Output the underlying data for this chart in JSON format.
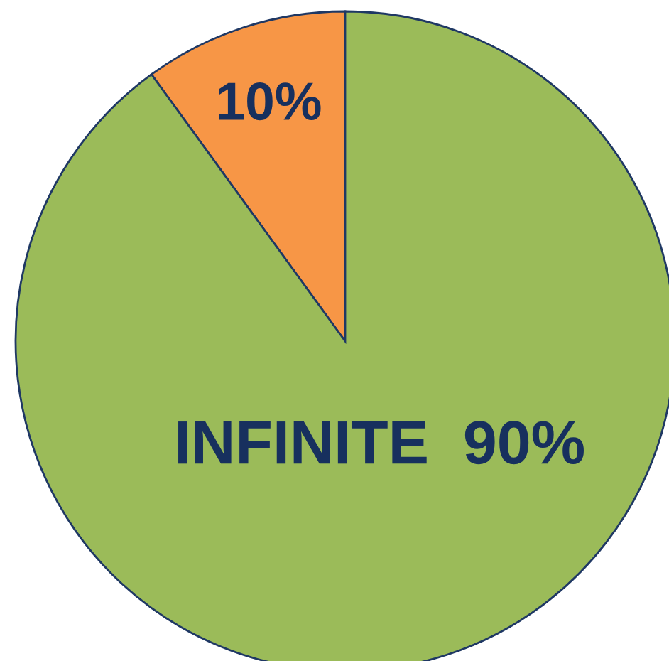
{
  "chart_data": {
    "type": "pie",
    "categories": [
      null,
      "INFINITE"
    ],
    "values": [
      10,
      90
    ],
    "colors": [
      "#f79646",
      "#9bbb59"
    ],
    "value_labels": [
      "10%",
      "90%"
    ]
  }
}
